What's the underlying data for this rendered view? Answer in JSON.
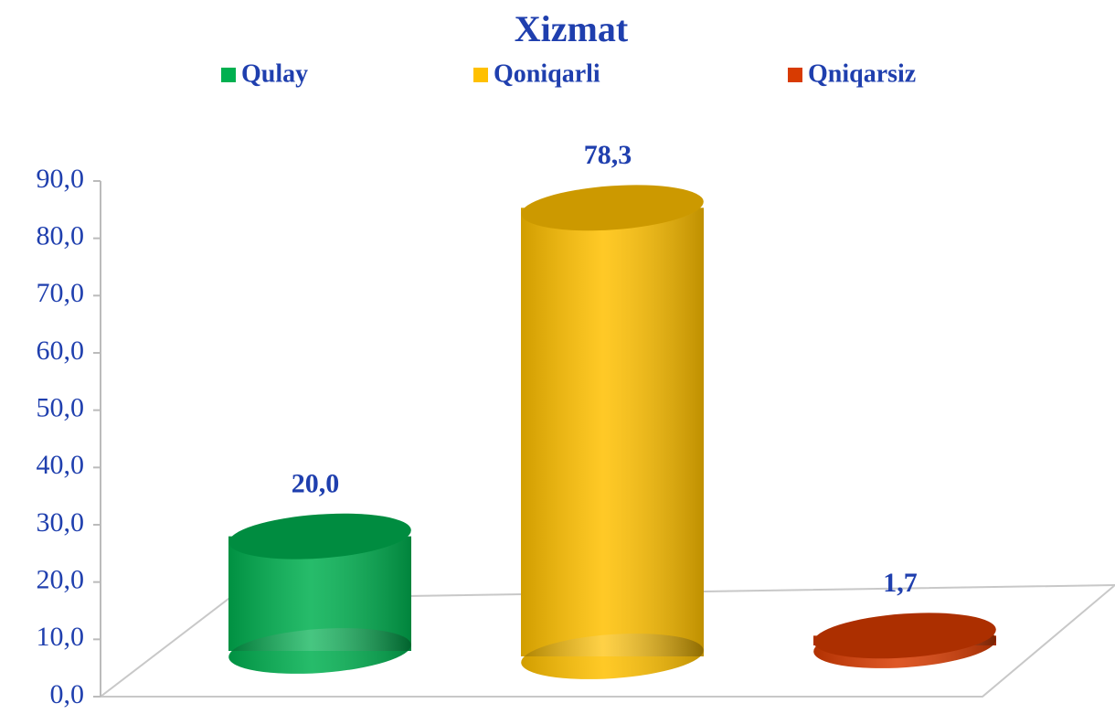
{
  "chart_data": {
    "type": "bar3d",
    "title": "Xizmat",
    "series": [
      {
        "name": "Qulay",
        "color": "#00b050",
        "values": [
          20.0
        ],
        "value_labels": [
          "20,0"
        ]
      },
      {
        "name": "Qoniqarli",
        "color": "#ffc000",
        "values": [
          78.3
        ],
        "value_labels": [
          "78,3"
        ]
      },
      {
        "name": "Qniqarsiz",
        "color": "#d83b01",
        "values": [
          1.7
        ],
        "value_labels": [
          "1,7"
        ]
      }
    ],
    "ylim": [
      0,
      90
    ],
    "yticks": [
      {
        "value": 0,
        "label": "0,0"
      },
      {
        "value": 10,
        "label": "10,0"
      },
      {
        "value": 20,
        "label": "20,0"
      },
      {
        "value": 30,
        "label": "30,0"
      },
      {
        "value": 40,
        "label": "40,0"
      },
      {
        "value": 50,
        "label": "50,0"
      },
      {
        "value": 60,
        "label": "60,0"
      },
      {
        "value": 70,
        "label": "70,0"
      },
      {
        "value": 80,
        "label": "80,0"
      },
      {
        "value": 90,
        "label": "90,0"
      }
    ],
    "legend": "top"
  }
}
